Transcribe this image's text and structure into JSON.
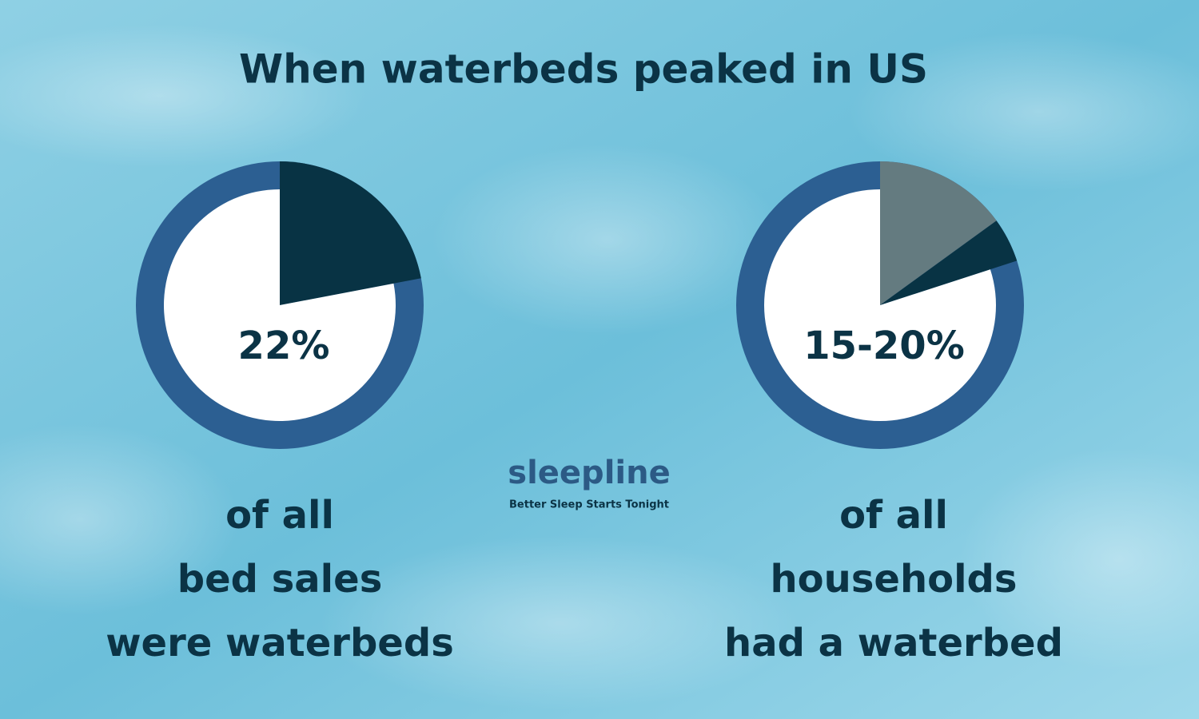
{
  "title": "When waterbeds peaked in US",
  "chart_data": [
    {
      "type": "pie",
      "values": [
        22,
        78
      ],
      "colors": [
        "#083344",
        "#ffffff"
      ],
      "ring_color": "#2c5f92",
      "center_label": "22%",
      "caption": [
        "of all",
        "bed sales",
        "were waterbeds"
      ]
    },
    {
      "type": "pie",
      "values": [
        15,
        5,
        80
      ],
      "colors": [
        "#647b80",
        "#083344",
        "#ffffff"
      ],
      "ring_color": "#2c5f92",
      "center_label": "15-20%",
      "caption": [
        "of all",
        "households",
        "had a waterbed"
      ]
    }
  ],
  "logo": {
    "name": "sleepline",
    "tagline": "Better Sleep Starts Tonight"
  }
}
